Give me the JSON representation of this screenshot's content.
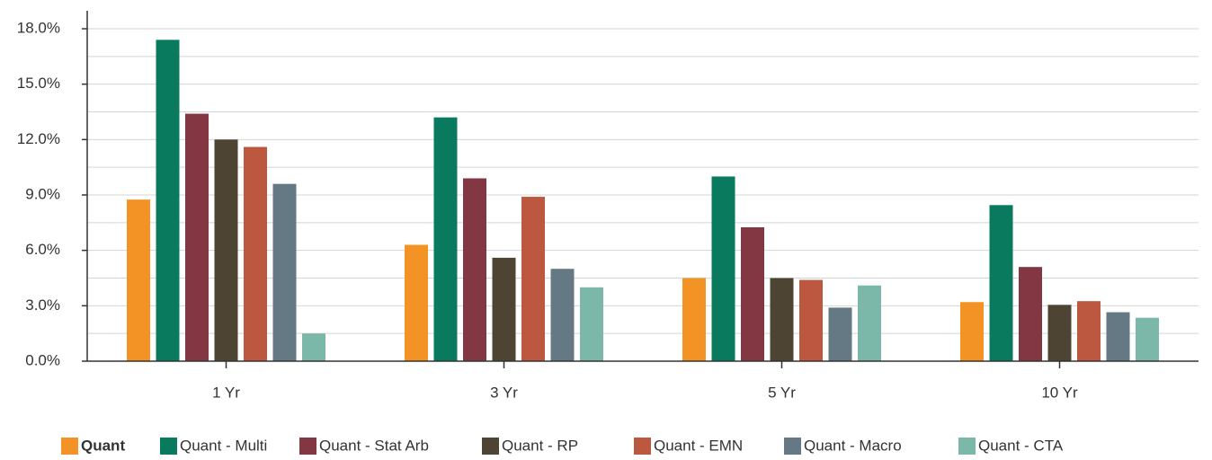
{
  "chart_data": {
    "type": "bar",
    "categories": [
      "1 Yr",
      "3 Yr",
      "5 Yr",
      "10 Yr"
    ],
    "series": [
      {
        "name": "Quant",
        "color": "#f39325",
        "values": [
          8.75,
          6.3,
          4.5,
          3.2
        ]
      },
      {
        "name": "Quant - Multi",
        "color": "#0a7a5e",
        "values": [
          17.4,
          13.2,
          10.0,
          8.45
        ]
      },
      {
        "name": "Quant - Stat Arb",
        "color": "#833743",
        "values": [
          13.4,
          9.9,
          7.25,
          5.1
        ]
      },
      {
        "name": "Quant - RP",
        "color": "#4d4434",
        "values": [
          12.0,
          5.6,
          4.5,
          3.05
        ]
      },
      {
        "name": "Quant - EMN",
        "color": "#bd5840",
        "values": [
          11.6,
          8.9,
          4.4,
          3.25
        ]
      },
      {
        "name": "Quant - Macro",
        "color": "#657984",
        "values": [
          9.6,
          5.0,
          2.9,
          2.65
        ]
      },
      {
        "name": "Quant - CTA",
        "color": "#7cb8a9",
        "values": [
          1.5,
          4.0,
          4.1,
          2.35
        ]
      }
    ],
    "ylim": [
      0,
      18
    ],
    "yticks": [
      {
        "value": 0,
        "label": "0.0%"
      },
      {
        "value": 3,
        "label": "3.0%"
      },
      {
        "value": 6,
        "label": "6.0%"
      },
      {
        "value": 9,
        "label": "9.0%"
      },
      {
        "value": 12,
        "label": "12.0%"
      },
      {
        "value": 15,
        "label": "15.0%"
      },
      {
        "value": 18,
        "label": "18.0%"
      }
    ],
    "minor_yticks": [
      1.5,
      4.5,
      7.5,
      10.5,
      13.5,
      16.5
    ],
    "grid": true,
    "legend": "bottom"
  }
}
